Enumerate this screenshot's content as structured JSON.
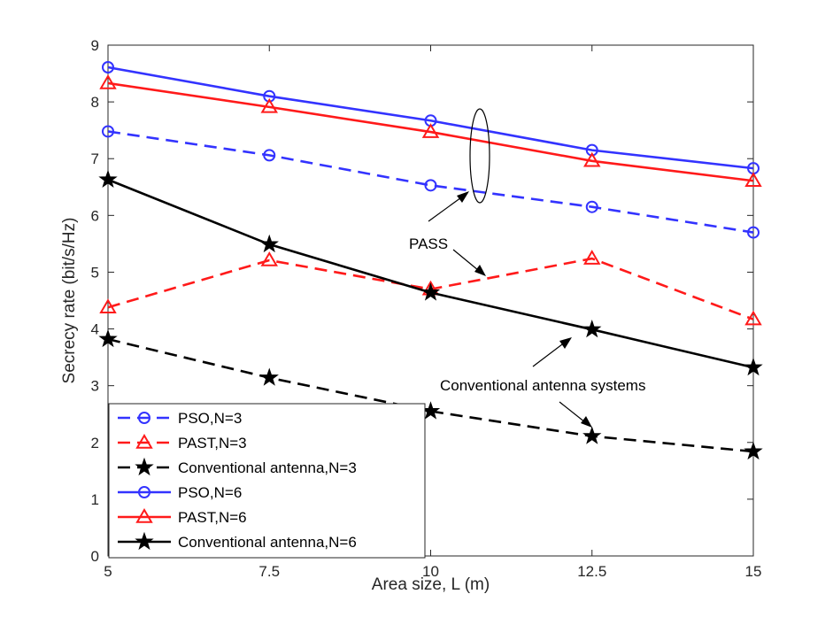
{
  "chart_data": {
    "type": "line",
    "title": "",
    "xlabel": "Area size, L (m)",
    "ylabel": "Secrecy rate (bit/s/Hz)",
    "xlim": [
      5,
      15
    ],
    "ylim": [
      0,
      9
    ],
    "xticks": [
      5,
      7.5,
      10,
      12.5,
      15
    ],
    "xtick_labels": [
      "5",
      "7.5",
      "10",
      "12.5",
      "15"
    ],
    "yticks": [
      0,
      1,
      2,
      3,
      4,
      5,
      6,
      7,
      8,
      9
    ],
    "ytick_labels": [
      "0",
      "1",
      "2",
      "3",
      "4",
      "5",
      "6",
      "7",
      "8",
      "9"
    ],
    "grid": false,
    "legend_position": "bottom-left",
    "x": [
      5,
      7.5,
      10,
      12.5,
      15
    ],
    "series": [
      {
        "name": "PSO,N=3",
        "values": [
          7.48,
          7.06,
          6.53,
          6.15,
          5.7
        ],
        "color": "#3333ff",
        "dash": "dashed",
        "marker": "circle"
      },
      {
        "name": "PAST,N=3",
        "values": [
          4.38,
          5.21,
          4.7,
          5.24,
          4.17
        ],
        "color": "#ff1a1a",
        "dash": "dashed",
        "marker": "triangle"
      },
      {
        "name": "Conventional antenna,N=3",
        "values": [
          3.82,
          3.14,
          2.55,
          2.11,
          1.84
        ],
        "color": "#000000",
        "dash": "dashed",
        "marker": "star"
      },
      {
        "name": "PSO,N=6",
        "values": [
          8.61,
          8.1,
          7.67,
          7.15,
          6.83
        ],
        "color": "#3333ff",
        "dash": "solid",
        "marker": "circle"
      },
      {
        "name": "PAST,N=6",
        "values": [
          8.33,
          7.91,
          7.47,
          6.96,
          6.61
        ],
        "color": "#ff1a1a",
        "dash": "solid",
        "marker": "triangle"
      },
      {
        "name": "Conventional antenna,N=6",
        "values": [
          6.63,
          5.49,
          4.64,
          3.99,
          3.32
        ],
        "color": "#000000",
        "dash": "solid",
        "marker": "star"
      }
    ],
    "annotations": [
      {
        "text": "PASS"
      },
      {
        "text": "Conventional antenna systems"
      }
    ]
  }
}
